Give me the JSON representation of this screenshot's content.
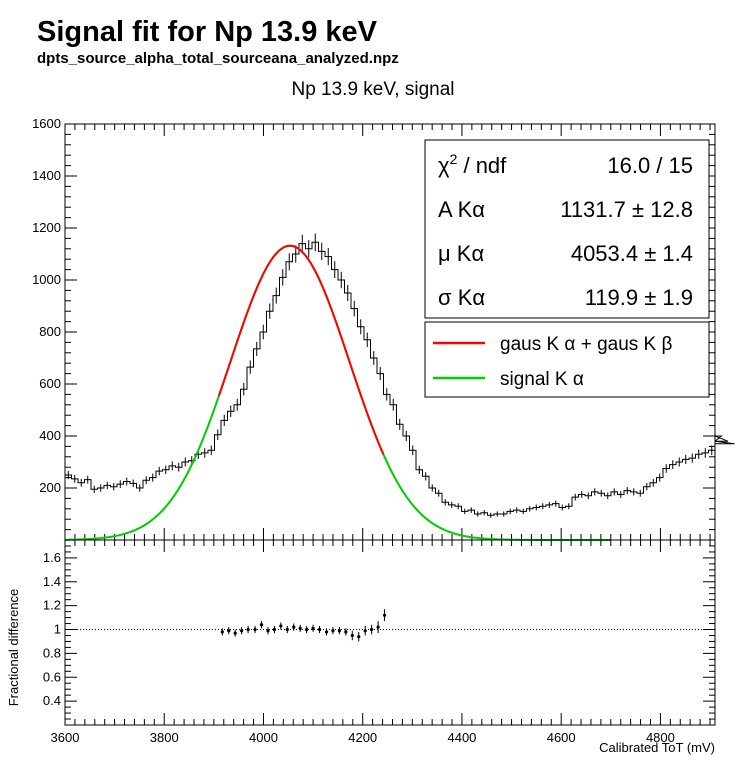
{
  "header": {
    "title": "Signal fit for Np 13.9 keV",
    "subtitle": "dpts_source_alpha_total_sourceana_analyzed.npz",
    "plot_title": "Np 13.9 keV, signal"
  },
  "stats": {
    "rows": [
      {
        "label_pre": "χ",
        "label_sup": "2",
        "label_post": " / ndf",
        "value": "16.0 / 15"
      },
      {
        "label_pre": "A Kα",
        "label_sup": "",
        "label_post": "",
        "value": "1131.7 ± 12.8"
      },
      {
        "label_pre": "μ Kα",
        "label_sup": "",
        "label_post": "",
        "value": "4053.4 ± 1.4"
      },
      {
        "label_pre": "σ Kα",
        "label_sup": "",
        "label_post": "",
        "value": "119.9 ± 1.9"
      }
    ]
  },
  "legend": {
    "entries": [
      {
        "label": "gaus K α + gaus K β",
        "color": "#ff0000"
      },
      {
        "label": "signal K α",
        "color": "#00cc00"
      }
    ]
  },
  "colors": {
    "histogram": "#000000",
    "fit": "#ff0000",
    "signal": "#00cc00",
    "frame": "#000000"
  },
  "chart_data": [
    {
      "type": "line",
      "panel": "top",
      "title": "Np 13.9 keV, signal",
      "xlim": [
        3600,
        4910
      ],
      "ylim": [
        0,
        1600
      ],
      "xticks": [
        3600,
        3800,
        4000,
        4200,
        4400,
        4600,
        4800
      ],
      "yticks": [
        200,
        400,
        600,
        800,
        1000,
        1200,
        1400,
        1600
      ],
      "xlabel": "",
      "ylabel": "",
      "histogram": {
        "bin_width": 13.1,
        "values": [
          250,
          235,
          220,
          232,
          195,
          200,
          210,
          205,
          215,
          225,
          218,
          200,
          230,
          240,
          265,
          270,
          285,
          280,
          300,
          305,
          330,
          335,
          345,
          405,
          460,
          495,
          520,
          580,
          665,
          735,
          800,
          880,
          940,
          1010,
          1070,
          1100,
          1140,
          1120,
          1145,
          1110,
          1090,
          1040,
          1000,
          950,
          890,
          820,
          770,
          700,
          640,
          560,
          520,
          445,
          400,
          345,
          270,
          245,
          200,
          180,
          145,
          135,
          130,
          110,
          115,
          100,
          105,
          95,
          100,
          100,
          110,
          115,
          110,
          120,
          125,
          130,
          135,
          140,
          125,
          130,
          165,
          175,
          170,
          185,
          180,
          170,
          185,
          175,
          190,
          185,
          180,
          205,
          220,
          240,
          275,
          290,
          300,
          310,
          315,
          330,
          335,
          345,
          380,
          400,
          380,
          370
        ]
      },
      "fit": {
        "name": "gaus K α + gaus K β",
        "x_range": [
          3910,
          4242
        ],
        "amplitude": 1131.7,
        "mean": 4053.4,
        "sigma": 119.9
      },
      "signal": {
        "name": "signal K α",
        "x_range": [
          3600,
          4700
        ],
        "amplitude": 1131.7,
        "mean": 4053.4,
        "sigma": 119.9
      }
    },
    {
      "type": "scatter",
      "panel": "bottom",
      "xlabel": "Calibrated ToT (mV)",
      "ylabel": "Fractional difference",
      "xlim": [
        3600,
        4910
      ],
      "ylim": [
        0.2,
        1.75
      ],
      "xticks": [
        3600,
        3800,
        4000,
        4200,
        4400,
        4600,
        4800
      ],
      "yticks": [
        0.4,
        0.6,
        0.8,
        1,
        1.2,
        1.4,
        1.6
      ],
      "reference_line": 1,
      "x": [
        3917,
        3930,
        3943,
        3956,
        3969,
        3983,
        3996,
        4009,
        4022,
        4035,
        4048,
        4061,
        4074,
        4087,
        4100,
        4113,
        4127,
        4140,
        4153,
        4166,
        4179,
        4192,
        4205,
        4218,
        4231,
        4244
      ],
      "y": [
        0.98,
        0.99,
        0.97,
        0.99,
        1.0,
        1.0,
        1.04,
        0.99,
        1.0,
        1.03,
        1.0,
        1.02,
        1.01,
        1.0,
        1.01,
        1.0,
        0.98,
        0.99,
        0.99,
        0.98,
        0.95,
        0.94,
        0.99,
        1.0,
        1.02,
        1.12
      ],
      "yerr": [
        0.03,
        0.03,
        0.03,
        0.03,
        0.03,
        0.03,
        0.03,
        0.03,
        0.03,
        0.03,
        0.03,
        0.03,
        0.03,
        0.03,
        0.03,
        0.03,
        0.03,
        0.03,
        0.03,
        0.03,
        0.04,
        0.04,
        0.04,
        0.04,
        0.05,
        0.05
      ]
    }
  ]
}
